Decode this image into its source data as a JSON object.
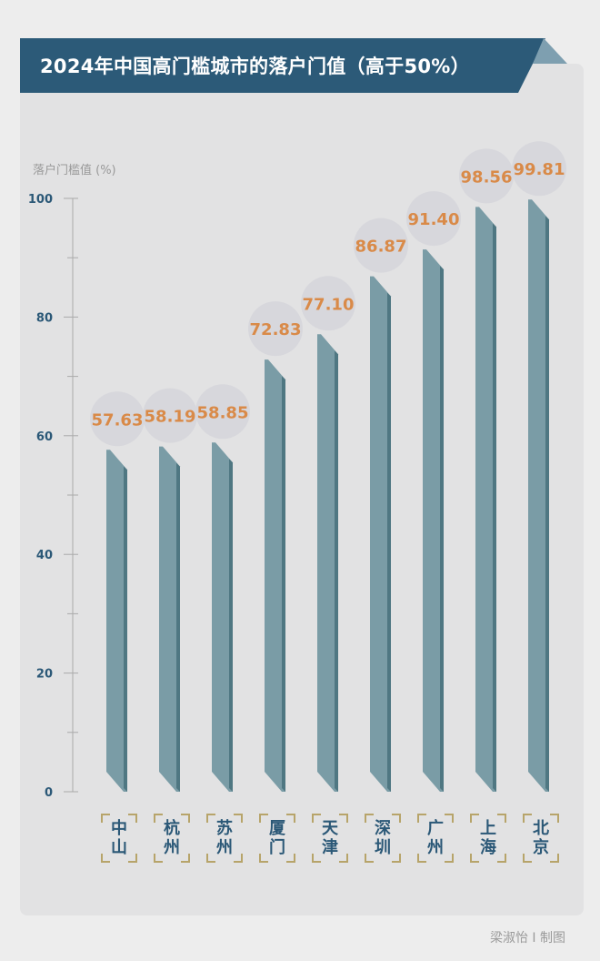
{
  "title": "2024年中国高门槛城市的落户门值（高于50%）",
  "credit": "梁淑怡 I 制图",
  "colors": {
    "banner": "#2c5a78",
    "bar": "#7a9ca6",
    "bar_side": "#4f7782",
    "label": "#d98a48",
    "bubble": "#d7d7dc",
    "axis": "#2b5877"
  },
  "chart_data": {
    "type": "bar",
    "title": "2024年中国高门槛城市的落户门值（高于50%）",
    "ylabel": "落户门槛值 (%)",
    "xlabel": "",
    "ylim": [
      0,
      100
    ],
    "yticks": [
      0,
      20,
      40,
      60,
      80,
      100
    ],
    "grid": false,
    "categories": [
      "中山",
      "杭州",
      "苏州",
      "厦门",
      "天津",
      "深圳",
      "广州",
      "上海",
      "北京"
    ],
    "values": [
      57.63,
      58.19,
      58.85,
      72.83,
      77.1,
      86.87,
      91.4,
      98.56,
      99.81
    ],
    "value_labels": [
      "57.63",
      "58.19",
      "58.85",
      "72.83",
      "77.10",
      "86.87",
      "91.40",
      "98.56",
      "99.81"
    ]
  }
}
